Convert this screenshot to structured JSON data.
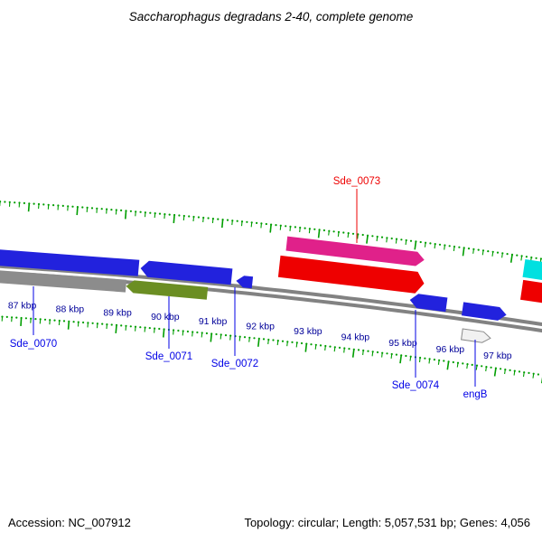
{
  "title": "Saccharophagus degradans 2-40, complete genome",
  "footer": {
    "accession": "Accession: NC_007912",
    "stats": "Topology: circular; Length: 5,057,531 bp; Genes: 4,056"
  },
  "chart_data": {
    "type": "genome-map",
    "map_style": "circular-genome-arc-segment",
    "units": "kbp",
    "visible_range_kbp": [
      86.5,
      97.8
    ],
    "colors": {
      "backbone": "#828282",
      "ruler": "#009E00",
      "ruler_label": "#000099",
      "gene_label": "#0000E6",
      "highlight_label": "#EE0000"
    },
    "ruler_ticks": [
      {
        "value_kbp": 87,
        "label": "87 kbp"
      },
      {
        "value_kbp": 88,
        "label": "88 kbp"
      },
      {
        "value_kbp": 89,
        "label": "89 kbp"
      },
      {
        "value_kbp": 90,
        "label": "90 kbp"
      },
      {
        "value_kbp": 91,
        "label": "91 kbp"
      },
      {
        "value_kbp": 92,
        "label": "92 kbp"
      },
      {
        "value_kbp": 93,
        "label": "93 kbp"
      },
      {
        "value_kbp": 94,
        "label": "94 kbp"
      },
      {
        "value_kbp": 95,
        "label": "95 kbp"
      },
      {
        "value_kbp": 96,
        "label": "96 kbp"
      },
      {
        "value_kbp": 97,
        "label": "97 kbp"
      }
    ],
    "features": [
      {
        "id": "sde_0070",
        "label": "Sde_0070",
        "role": "gene",
        "strand": "reverse",
        "start_kbp": 86.3,
        "end_kbp": 89.36,
        "color": "#2222DD",
        "label_color": "#0000E6"
      },
      {
        "id": "sde_0070_category",
        "label": null,
        "role": "category",
        "strand": "reverse",
        "start_kbp": 86.3,
        "end_kbp": 89.13,
        "color": "#8C8C8C"
      },
      {
        "id": "sde_0071",
        "label": "Sde_0071",
        "role": "gene",
        "strand": "reverse",
        "start_kbp": 89.4,
        "end_kbp": 91.3,
        "color": "#2222DD",
        "label_color": "#0000E6"
      },
      {
        "id": "sde_0071_category",
        "label": null,
        "role": "category",
        "strand": "reverse",
        "start_kbp": 89.13,
        "end_kbp": 90.83,
        "color": "#6B8E23"
      },
      {
        "id": "sde_0072",
        "label": "Sde_0072",
        "role": "gene",
        "strand": "reverse",
        "start_kbp": 91.4,
        "end_kbp": 91.74,
        "color": "#2222DD",
        "label_color": "#0000E6"
      },
      {
        "id": "sde_0073_category",
        "label": null,
        "role": "category",
        "strand": "forward",
        "start_kbp": 92.36,
        "end_kbp": 95.22,
        "color": "#E0218A"
      },
      {
        "id": "sde_0073",
        "label": "Sde_0073",
        "role": "gene",
        "strand": "forward",
        "start_kbp": 92.26,
        "end_kbp": 95.28,
        "color": "#EE0000",
        "label_color": "#EE0000"
      },
      {
        "id": "sde_0074",
        "label": "Sde_0074",
        "role": "gene",
        "strand": "reverse",
        "start_kbp": 95.03,
        "end_kbp": 95.8,
        "color": "#2222DD",
        "label_color": "#0000E6"
      },
      {
        "id": "engB",
        "label": "engB",
        "role": "gene",
        "strand": "forward",
        "start_kbp": 96.14,
        "end_kbp": 97.06,
        "color": "#2222DD",
        "label_color": "#0000E6"
      },
      {
        "id": "engB_category",
        "label": null,
        "role": "category",
        "strand": "forward",
        "start_kbp": 96.2,
        "end_kbp": 96.8,
        "color": "#F1F1F1",
        "stroke": "#8A8A8A"
      },
      {
        "id": "gene_right",
        "label": null,
        "role": "gene",
        "strand": "forward",
        "start_kbp": 97.3,
        "end_kbp": 98.2,
        "color": "#EE0000"
      },
      {
        "id": "gene_right_category",
        "label": null,
        "role": "category",
        "strand": "forward",
        "start_kbp": 97.28,
        "end_kbp": 98.2,
        "color": "#00E0E0"
      }
    ]
  }
}
